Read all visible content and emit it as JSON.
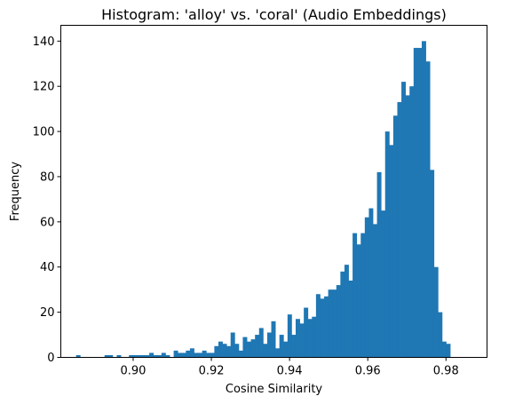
{
  "chart_data": {
    "type": "bar",
    "title": "Histogram: 'alloy' vs. 'coral' (Audio Embeddings)",
    "xlabel": "Cosine Similarity",
    "ylabel": "Frequency",
    "xlim": [
      0.8815,
      0.9905
    ],
    "ylim": [
      0,
      147
    ],
    "xticks": [
      0.9,
      0.92,
      0.94,
      0.96,
      0.98
    ],
    "xtick_labels": [
      "0.90",
      "0.92",
      "0.94",
      "0.96",
      "0.98"
    ],
    "yticks": [
      0,
      20,
      40,
      60,
      80,
      100,
      120,
      140
    ],
    "ytick_labels": [
      "0",
      "20",
      "40",
      "60",
      "80",
      "100",
      "120",
      "140"
    ],
    "grid": false,
    "bar_color": "#1f77b4",
    "bin_start": 0.8854,
    "bin_width": 0.00104,
    "counts": [
      1,
      0,
      0,
      0,
      0,
      0,
      0,
      1,
      1,
      0,
      1,
      0,
      0,
      1,
      1,
      1,
      1,
      1,
      2,
      1,
      1,
      2,
      1,
      0,
      3,
      2,
      2,
      3,
      4,
      2,
      2,
      3,
      2,
      2,
      5,
      7,
      6,
      5,
      11,
      6,
      3,
      9,
      7,
      8,
      10,
      13,
      6,
      11,
      16,
      4,
      10,
      7,
      19,
      10,
      17,
      15,
      22,
      17,
      18,
      28,
      26,
      27,
      30,
      30,
      32,
      38,
      41,
      34,
      55,
      50,
      55,
      62,
      66,
      59,
      82,
      65,
      100,
      94,
      107,
      113,
      122,
      116,
      120,
      137,
      137,
      140,
      131,
      83,
      40,
      20,
      7,
      6
    ]
  }
}
